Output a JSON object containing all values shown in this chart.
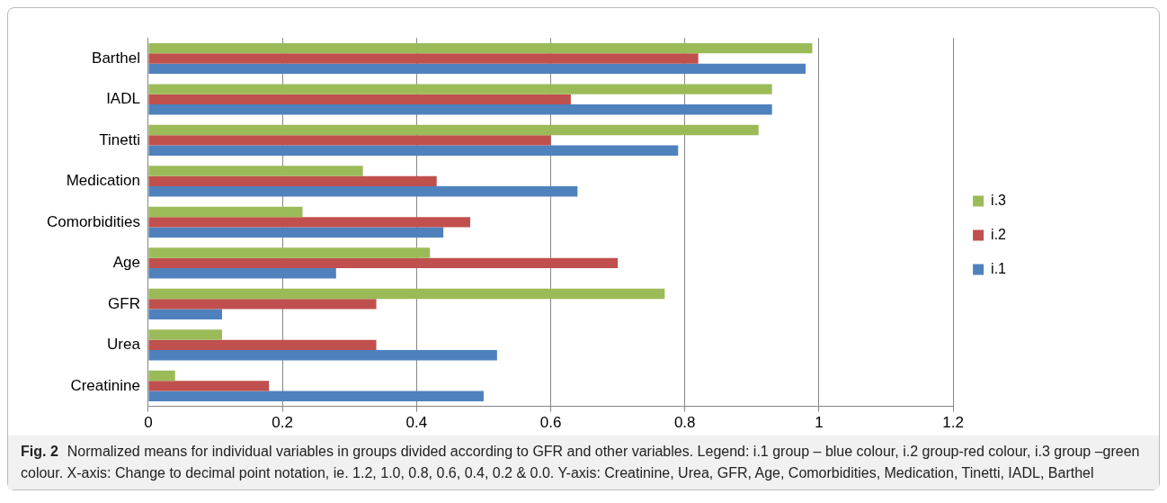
{
  "chart_data": {
    "type": "bar",
    "orientation": "horizontal",
    "categories": [
      "Barthel",
      "IADL",
      "Tinetti",
      "Medication",
      "Comorbidities",
      "Age",
      "GFR",
      "Urea",
      "Creatinine"
    ],
    "series": [
      {
        "name": "i.3",
        "color": "#9bbb59",
        "values": [
          0.99,
          0.93,
          0.91,
          0.32,
          0.23,
          0.42,
          0.77,
          0.11,
          0.04
        ]
      },
      {
        "name": "i.2",
        "color": "#c0504d",
        "values": [
          0.82,
          0.63,
          0.6,
          0.43,
          0.48,
          0.7,
          0.34,
          0.34,
          0.18
        ]
      },
      {
        "name": "i.1",
        "color": "#4f81bd",
        "values": [
          0.98,
          0.93,
          0.79,
          0.64,
          0.44,
          0.28,
          0.11,
          0.52,
          0.5
        ]
      }
    ],
    "xlim": [
      0,
      1.2
    ],
    "xticks": [
      0,
      0.2,
      0.4,
      0.6,
      0.8,
      1,
      1.2
    ],
    "grid": "x",
    "legend": "right",
    "annotations": [
      "Fig. 2",
      "Normalized means for individual variables in groups divided according to GFR and other variables. Legend: i.1 group – blue colour, i.2 group-red colour, i.3 group –green colour. X-axis: Change to decimal point notation, ie. 1.2, 1.0, 0.8, 0.6, 0.4, 0.2 & 0.0. Y-axis: Creatinine, Urea, GFR, Age, Comorbidities, Medication, Tinetti, IADL, Barthel"
    ]
  }
}
